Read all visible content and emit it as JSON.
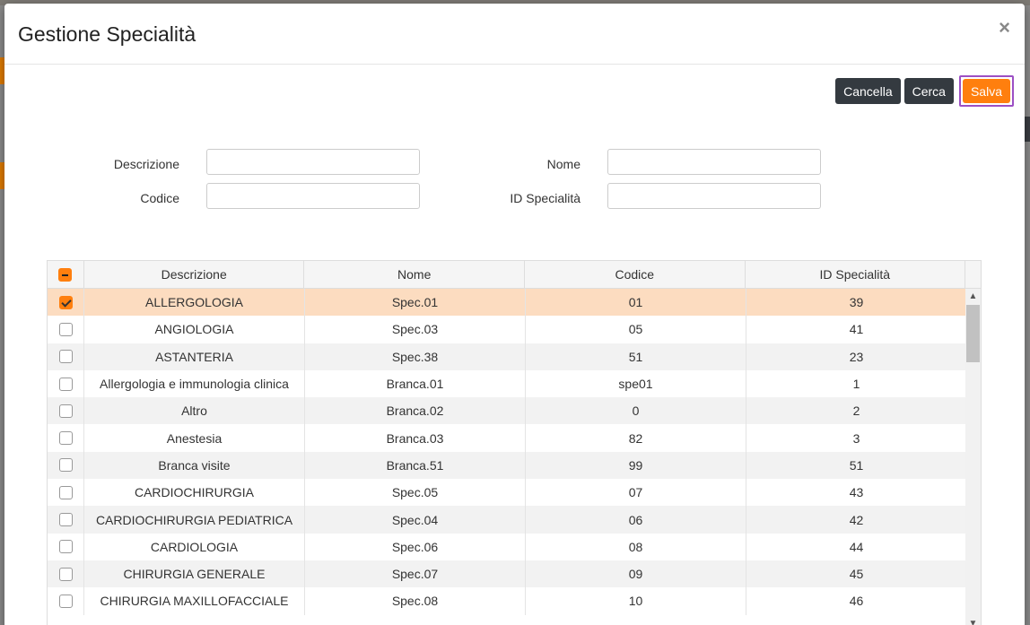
{
  "modal": {
    "title": "Gestione Specialità",
    "close_glyph": "×"
  },
  "toolbar": {
    "cancel_label": "Cancella",
    "search_label": "Cerca",
    "save_label": "Salva"
  },
  "form": {
    "descrizione_label": "Descrizione",
    "codice_label": "Codice",
    "nome_label": "Nome",
    "id_label": "ID Specialità",
    "descrizione_value": "",
    "codice_value": "",
    "nome_value": "",
    "id_value": ""
  },
  "grid": {
    "columns": [
      "Descrizione",
      "Nome",
      "Codice",
      "ID Specialità"
    ],
    "rows": [
      {
        "checked": true,
        "descrizione": "ALLERGOLOGIA",
        "nome": "Spec.01",
        "codice": "01",
        "id": "39"
      },
      {
        "checked": false,
        "descrizione": "ANGIOLOGIA",
        "nome": "Spec.03",
        "codice": "05",
        "id": "41"
      },
      {
        "checked": false,
        "descrizione": "ASTANTERIA",
        "nome": "Spec.38",
        "codice": "51",
        "id": "23"
      },
      {
        "checked": false,
        "descrizione": "Allergologia e immunologia clinica",
        "nome": "Branca.01",
        "codice": "spe01",
        "id": "1"
      },
      {
        "checked": false,
        "descrizione": "Altro",
        "nome": "Branca.02",
        "codice": "0",
        "id": "2"
      },
      {
        "checked": false,
        "descrizione": "Anestesia",
        "nome": "Branca.03",
        "codice": "82",
        "id": "3"
      },
      {
        "checked": false,
        "descrizione": "Branca visite",
        "nome": "Branca.51",
        "codice": "99",
        "id": "51"
      },
      {
        "checked": false,
        "descrizione": "CARDIOCHIRURGIA",
        "nome": "Spec.05",
        "codice": "07",
        "id": "43"
      },
      {
        "checked": false,
        "descrizione": "CARDIOCHIRURGIA PEDIATRICA",
        "nome": "Spec.04",
        "codice": "06",
        "id": "42"
      },
      {
        "checked": false,
        "descrizione": "CARDIOLOGIA",
        "nome": "Spec.06",
        "codice": "08",
        "id": "44"
      },
      {
        "checked": false,
        "descrizione": "CHIRURGIA GENERALE",
        "nome": "Spec.07",
        "codice": "09",
        "id": "45"
      },
      {
        "checked": false,
        "descrizione": "CHIRURGIA MAXILLOFACCIALE",
        "nome": "Spec.08",
        "codice": "10",
        "id": "46"
      }
    ]
  },
  "colors": {
    "accent": "#ff7f0e",
    "selected_row": "#fcdcc0",
    "dark_button": "#343a40",
    "focus_outline": "#9c4fc4"
  }
}
